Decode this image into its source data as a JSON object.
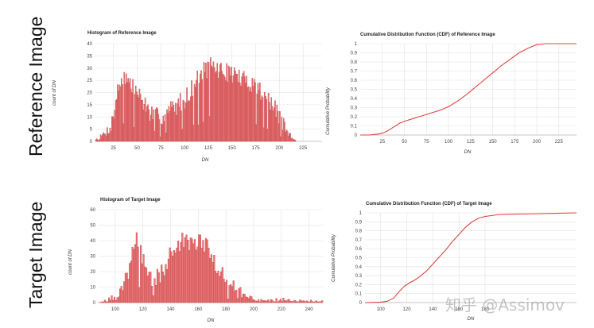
{
  "row_labels": {
    "reference": "Reference Image",
    "target": "Target Image"
  },
  "watermark": "知乎 @Assimov",
  "chart_data": [
    {
      "id": "ref-hist",
      "type": "bar",
      "title": "Histogram of Reference Image",
      "xlabel": "DN",
      "ylabel": "count of DN",
      "xlim": [
        6,
        245
      ],
      "ylim": [
        0,
        40
      ],
      "xticks": [
        25,
        50,
        75,
        100,
        125,
        150,
        175,
        200,
        225
      ],
      "yticks": [
        0,
        5,
        10,
        15,
        20,
        25,
        30,
        35,
        40
      ],
      "anchors": [
        [
          8,
          1
        ],
        [
          12,
          2
        ],
        [
          18,
          4
        ],
        [
          22,
          6
        ],
        [
          25,
          10
        ],
        [
          28,
          18
        ],
        [
          32,
          24
        ],
        [
          36,
          27
        ],
        [
          40,
          25
        ],
        [
          45,
          22
        ],
        [
          50,
          20
        ],
        [
          55,
          17
        ],
        [
          60,
          14
        ],
        [
          65,
          11
        ],
        [
          70,
          10
        ],
        [
          75,
          10
        ],
        [
          80,
          11
        ],
        [
          85,
          13
        ],
        [
          90,
          14
        ],
        [
          95,
          16
        ],
        [
          100,
          17
        ],
        [
          105,
          20
        ],
        [
          110,
          23
        ],
        [
          115,
          26
        ],
        [
          120,
          29
        ],
        [
          125,
          30
        ],
        [
          130,
          31
        ],
        [
          135,
          29
        ],
        [
          140,
          29
        ],
        [
          145,
          28
        ],
        [
          150,
          28
        ],
        [
          155,
          27
        ],
        [
          160,
          25
        ],
        [
          165,
          25
        ],
        [
          170,
          24
        ],
        [
          175,
          23
        ],
        [
          180,
          21
        ],
        [
          185,
          19
        ],
        [
          190,
          16
        ],
        [
          195,
          13
        ],
        [
          200,
          10
        ],
        [
          204,
          7
        ],
        [
          208,
          4
        ],
        [
          212,
          2
        ],
        [
          215,
          1
        ],
        [
          218,
          0
        ]
      ],
      "noise": 4
    },
    {
      "id": "ref-cdf",
      "type": "line",
      "title": "Cumulative Distribution Function (CDF) of Reference Image",
      "xlabel": "DN",
      "ylabel": "Cumulative Probability",
      "xlim": [
        0,
        245
      ],
      "ylim": [
        0,
        1.0
      ],
      "xticks": [
        25,
        50,
        75,
        100,
        125,
        150,
        175,
        200,
        225
      ],
      "yticks": [
        0,
        0.1,
        0.2,
        0.3,
        0.4,
        0.5,
        0.6,
        0.7,
        0.8,
        0.9,
        1.0
      ],
      "points": [
        [
          0,
          0
        ],
        [
          10,
          0
        ],
        [
          20,
          0.01
        ],
        [
          25,
          0.02
        ],
        [
          30,
          0.04
        ],
        [
          35,
          0.07
        ],
        [
          40,
          0.1
        ],
        [
          45,
          0.13
        ],
        [
          50,
          0.15
        ],
        [
          60,
          0.18
        ],
        [
          70,
          0.21
        ],
        [
          80,
          0.24
        ],
        [
          90,
          0.27
        ],
        [
          100,
          0.31
        ],
        [
          110,
          0.37
        ],
        [
          120,
          0.44
        ],
        [
          130,
          0.52
        ],
        [
          140,
          0.6
        ],
        [
          150,
          0.68
        ],
        [
          160,
          0.76
        ],
        [
          170,
          0.83
        ],
        [
          180,
          0.9
        ],
        [
          190,
          0.95
        ],
        [
          200,
          0.99
        ],
        [
          210,
          1.0
        ],
        [
          245,
          1.0
        ]
      ]
    },
    {
      "id": "tgt-hist",
      "type": "bar",
      "title": "Histogram of Target Image",
      "xlabel": "DN",
      "ylabel": "count of DN",
      "xlim": [
        88,
        250
      ],
      "ylim": [
        0,
        60
      ],
      "xticks": [
        100,
        120,
        140,
        160,
        180,
        200,
        220,
        240
      ],
      "yticks": [
        0,
        10,
        20,
        30,
        40,
        50,
        60
      ],
      "anchors": [
        [
          88,
          0
        ],
        [
          94,
          2
        ],
        [
          100,
          3
        ],
        [
          104,
          6
        ],
        [
          107,
          12
        ],
        [
          110,
          20
        ],
        [
          113,
          34
        ],
        [
          116,
          44
        ],
        [
          118,
          35
        ],
        [
          120,
          28
        ],
        [
          123,
          20
        ],
        [
          126,
          16
        ],
        [
          130,
          16
        ],
        [
          134,
          20
        ],
        [
          138,
          28
        ],
        [
          142,
          34
        ],
        [
          146,
          38
        ],
        [
          150,
          40
        ],
        [
          154,
          38
        ],
        [
          158,
          40
        ],
        [
          162,
          40
        ],
        [
          166,
          38
        ],
        [
          170,
          30
        ],
        [
          174,
          22
        ],
        [
          178,
          16
        ],
        [
          182,
          12
        ],
        [
          186,
          8
        ],
        [
          190,
          6
        ],
        [
          195,
          3
        ],
        [
          200,
          2
        ],
        [
          210,
          1
        ],
        [
          220,
          2
        ],
        [
          230,
          1
        ],
        [
          250,
          1
        ]
      ],
      "noise": 6
    },
    {
      "id": "tgt-cdf",
      "type": "line",
      "title": "Cumulative Distribution Function (CDF) of Target Image",
      "xlabel": "DN",
      "ylabel": "Cumulative Probability",
      "xlim": [
        88,
        250
      ],
      "ylim": [
        0,
        1.0
      ],
      "xticks": [
        100,
        120,
        140,
        160,
        180
      ],
      "yticks": [
        0,
        0.1,
        0.2,
        0.3,
        0.4,
        0.5,
        0.6,
        0.7,
        0.8,
        0.9,
        1.0
      ],
      "points": [
        [
          88,
          0
        ],
        [
          100,
          0.005
        ],
        [
          105,
          0.015
        ],
        [
          110,
          0.05
        ],
        [
          114,
          0.12
        ],
        [
          118,
          0.18
        ],
        [
          122,
          0.22
        ],
        [
          126,
          0.25
        ],
        [
          130,
          0.29
        ],
        [
          135,
          0.35
        ],
        [
          140,
          0.43
        ],
        [
          145,
          0.51
        ],
        [
          150,
          0.59
        ],
        [
          155,
          0.68
        ],
        [
          160,
          0.76
        ],
        [
          165,
          0.84
        ],
        [
          170,
          0.9
        ],
        [
          175,
          0.94
        ],
        [
          180,
          0.96
        ],
        [
          190,
          0.98
        ],
        [
          200,
          0.985
        ],
        [
          220,
          0.99
        ],
        [
          235,
          0.995
        ],
        [
          250,
          1.0
        ]
      ]
    }
  ]
}
